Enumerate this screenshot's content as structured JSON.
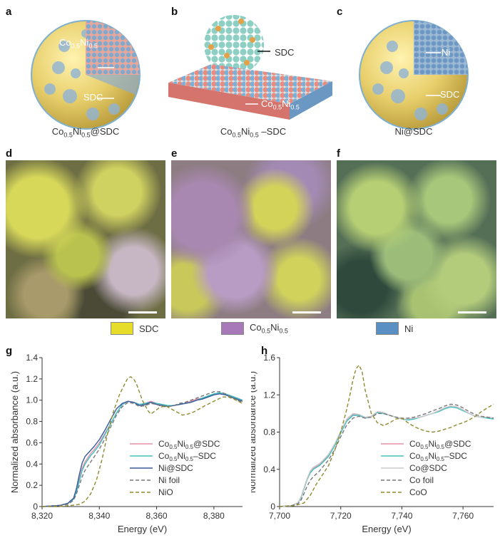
{
  "panels": {
    "a": {
      "label": "a",
      "caption_base": "Co",
      "caption_sub1": "0.5",
      "caption_mid": "Ni",
      "caption_sub2": "0.5",
      "caption_tail": "@SDC",
      "ann1_base": "Co",
      "ann1_sub1": "0.5",
      "ann1_mid": "Ni",
      "ann1_sub2": "0.5",
      "ann2": "SDC"
    },
    "b": {
      "label": "b",
      "caption_base": "Co",
      "caption_sub1": "0.5",
      "caption_mid": "Ni",
      "caption_sub2": "0.5",
      "caption_tail": " –SDC",
      "ann1": "SDC",
      "ann2_base": "Co",
      "ann2_sub1": "0.5",
      "ann2_mid": "Ni",
      "ann2_sub2": "0.5"
    },
    "c": {
      "label": "c",
      "caption": "Ni@SDC",
      "ann1": "Ni",
      "ann2": "SDC"
    },
    "d": {
      "label": "d"
    },
    "e": {
      "label": "e"
    },
    "f": {
      "label": "f"
    },
    "g": {
      "label": "g"
    },
    "h": {
      "label": "h"
    }
  },
  "legend": {
    "sdc": {
      "label": "SDC",
      "color": "#e6dc2a"
    },
    "coni": {
      "label_base": "Co",
      "label_sub1": "0.5",
      "label_mid": "Ni",
      "label_sub2": "0.5",
      "color": "#a879b8"
    },
    "ni": {
      "label": "Ni",
      "color": "#5a8fc4"
    }
  },
  "chart_data": [
    {
      "type": "line",
      "panel": "g",
      "xlabel": "Energy (eV)",
      "ylabel": "Normalized absorbance (a.u.)",
      "xlim": [
        8320,
        8390
      ],
      "ylim": [
        0,
        1.4
      ],
      "xticks": [
        8320,
        8340,
        8360,
        8380
      ],
      "xtick_labels": [
        "8,320",
        "8,340",
        "8,360",
        "8,380"
      ],
      "yticks": [
        0,
        0.2,
        0.4,
        0.6,
        0.8,
        1.0,
        1.2,
        1.4
      ],
      "ytick_labels": [
        "0",
        "0.2",
        "0.4",
        "0.6",
        "0.8",
        "1.0",
        "1.2",
        "1.4"
      ],
      "legend_position": "lower-right",
      "series": [
        {
          "name": "Co0.5Ni0.5@SDC",
          "legend_base": "Co",
          "legend_sub1": "0.5",
          "legend_mid": "Ni",
          "legend_sub2": "0.5",
          "legend_tail": "@SDC",
          "color": "#e58fa6",
          "dash": "solid",
          "x": [
            8320,
            8326,
            8329,
            8331,
            8332,
            8333,
            8334,
            8335,
            8336,
            8337,
            8338,
            8340,
            8342,
            8344,
            8346,
            8348,
            8350,
            8352,
            8354,
            8356,
            8358,
            8360,
            8362,
            8364,
            8366,
            8368,
            8370,
            8372,
            8374,
            8376,
            8378,
            8380,
            8382,
            8384,
            8386,
            8388,
            8390
          ],
          "y": [
            0,
            0.01,
            0.03,
            0.07,
            0.15,
            0.26,
            0.36,
            0.42,
            0.46,
            0.5,
            0.53,
            0.6,
            0.69,
            0.78,
            0.88,
            0.96,
            0.99,
            0.98,
            0.96,
            0.97,
            0.99,
            0.97,
            0.95,
            0.95,
            0.95,
            0.96,
            0.97,
            0.99,
            1.01,
            1.02,
            1.04,
            1.06,
            1.07,
            1.06,
            1.04,
            1.02,
            1.0
          ]
        },
        {
          "name": "Co0.5Ni0.5-SDC",
          "legend_base": "Co",
          "legend_sub1": "0.5",
          "legend_mid": "Ni",
          "legend_sub2": "0.5",
          "legend_tail": "–SDC",
          "color": "#3fc0c0",
          "dash": "solid",
          "x": [
            8320,
            8326,
            8329,
            8331,
            8332,
            8333,
            8334,
            8335,
            8336,
            8337,
            8338,
            8340,
            8342,
            8344,
            8346,
            8348,
            8350,
            8352,
            8354,
            8356,
            8358,
            8360,
            8362,
            8364,
            8366,
            8368,
            8370,
            8372,
            8374,
            8376,
            8378,
            8380,
            8382,
            8384,
            8386,
            8388,
            8390
          ],
          "y": [
            0,
            0.01,
            0.03,
            0.07,
            0.14,
            0.24,
            0.34,
            0.4,
            0.44,
            0.48,
            0.51,
            0.58,
            0.68,
            0.78,
            0.88,
            0.96,
            0.99,
            0.98,
            0.96,
            0.97,
            0.98,
            0.97,
            0.96,
            0.95,
            0.95,
            0.96,
            0.97,
            0.98,
            1.0,
            1.02,
            1.04,
            1.06,
            1.07,
            1.06,
            1.04,
            1.02,
            1.0
          ]
        },
        {
          "name": "Ni@SDC",
          "legend_base": "Ni@SDC",
          "color": "#3a5a9a",
          "dash": "solid",
          "x": [
            8320,
            8326,
            8329,
            8331,
            8332,
            8333,
            8334,
            8335,
            8336,
            8337,
            8338,
            8340,
            8342,
            8344,
            8346,
            8348,
            8350,
            8352,
            8354,
            8356,
            8358,
            8360,
            8362,
            8364,
            8366,
            8368,
            8370,
            8372,
            8374,
            8376,
            8378,
            8380,
            8382,
            8384,
            8386,
            8388,
            8390
          ],
          "y": [
            0,
            0.01,
            0.03,
            0.08,
            0.17,
            0.3,
            0.41,
            0.47,
            0.5,
            0.53,
            0.56,
            0.63,
            0.72,
            0.82,
            0.92,
            0.97,
            0.99,
            0.98,
            0.95,
            0.96,
            0.98,
            0.96,
            0.95,
            0.94,
            0.95,
            0.96,
            0.97,
            0.98,
            1.0,
            1.01,
            1.03,
            1.05,
            1.06,
            1.05,
            1.03,
            1.01,
            0.99
          ]
        },
        {
          "name": "Ni foil",
          "legend_base": "Ni foil",
          "color": "#777777",
          "dash": "dashed",
          "x": [
            8320,
            8326,
            8329,
            8331,
            8332,
            8333,
            8334,
            8335,
            8336,
            8337,
            8338,
            8340,
            8342,
            8344,
            8346,
            8348,
            8350,
            8352,
            8354,
            8356,
            8358,
            8360,
            8362,
            8364,
            8366,
            8368,
            8370,
            8372,
            8374,
            8376,
            8378,
            8380,
            8382,
            8384,
            8386,
            8388,
            8390
          ],
          "y": [
            0,
            0.01,
            0.02,
            0.06,
            0.12,
            0.2,
            0.28,
            0.34,
            0.38,
            0.42,
            0.46,
            0.54,
            0.64,
            0.75,
            0.86,
            0.94,
            0.98,
            0.97,
            0.94,
            0.95,
            0.97,
            0.96,
            0.94,
            0.94,
            0.95,
            0.97,
            0.98,
            1.0,
            1.02,
            1.04,
            1.06,
            1.08,
            1.08,
            1.06,
            1.03,
            1.0,
            0.98
          ]
        },
        {
          "name": "NiO",
          "legend_base": "NiO",
          "color": "#8f8a2e",
          "dash": "dashed",
          "x": [
            8320,
            8326,
            8330,
            8333,
            8335,
            8337,
            8339,
            8341,
            8343,
            8345,
            8347,
            8349,
            8350,
            8351,
            8352,
            8353,
            8355,
            8357,
            8358,
            8359,
            8361,
            8363,
            8365,
            8367,
            8369,
            8371,
            8373,
            8375,
            8377,
            8380,
            8383,
            8385,
            8387,
            8390
          ],
          "y": [
            0,
            0.0,
            0.01,
            0.02,
            0.05,
            0.12,
            0.25,
            0.45,
            0.7,
            0.9,
            1.05,
            1.16,
            1.21,
            1.22,
            1.2,
            1.15,
            1.0,
            0.9,
            0.87,
            0.89,
            0.93,
            0.95,
            0.92,
            0.89,
            0.86,
            0.87,
            0.89,
            0.92,
            0.95,
            0.99,
            1.03,
            1.03,
            1.01,
            0.97
          ]
        }
      ]
    },
    {
      "type": "line",
      "panel": "h",
      "xlabel": "Energy (eV)",
      "ylabel": "Normalized absorbance (a.u.)",
      "xlim": [
        7700,
        7770
      ],
      "ylim": [
        0,
        1.6
      ],
      "xticks": [
        7700,
        7720,
        7740,
        7760
      ],
      "xtick_labels": [
        "7,700",
        "7,720",
        "7,740",
        "7,760"
      ],
      "yticks": [
        0,
        0.4,
        0.8,
        1.2,
        1.6
      ],
      "ytick_labels": [
        "0",
        "0.4",
        "0.8",
        "1.2",
        "1.6"
      ],
      "legend_position": "lower-right",
      "series": [
        {
          "name": "Co0.5Ni0.5@SDC",
          "legend_base": "Co",
          "legend_sub1": "0.5",
          "legend_mid": "Ni",
          "legend_sub2": "0.5",
          "legend_tail": "@SDC",
          "color": "#e58fa6",
          "dash": "solid",
          "x": [
            7700,
            7704,
            7706,
            7707,
            7708,
            7709,
            7710,
            7711,
            7712,
            7713,
            7714,
            7716,
            7718,
            7720,
            7722,
            7724,
            7726,
            7728,
            7730,
            7732,
            7734,
            7736,
            7738,
            7740,
            7742,
            7744,
            7746,
            7748,
            7750,
            7752,
            7754,
            7756,
            7758,
            7760,
            7762,
            7764,
            7766,
            7768,
            7770
          ],
          "y": [
            0,
            0.01,
            0.04,
            0.1,
            0.2,
            0.3,
            0.37,
            0.41,
            0.43,
            0.45,
            0.48,
            0.55,
            0.66,
            0.8,
            0.93,
            0.99,
            0.98,
            0.95,
            0.97,
            1.02,
            1.01,
            0.98,
            0.96,
            0.94,
            0.94,
            0.95,
            0.96,
            0.98,
            1.0,
            1.03,
            1.06,
            1.08,
            1.07,
            1.04,
            1.0,
            0.97,
            0.96,
            0.96,
            0.95
          ]
        },
        {
          "name": "Co0.5Ni0.5-SDC",
          "legend_base": "Co",
          "legend_sub1": "0.5",
          "legend_mid": "Ni",
          "legend_sub2": "0.5",
          "legend_tail": "–SDC",
          "color": "#3fc0c0",
          "dash": "solid",
          "x": [
            7700,
            7704,
            7706,
            7707,
            7708,
            7709,
            7710,
            7711,
            7712,
            7713,
            7714,
            7716,
            7718,
            7720,
            7722,
            7724,
            7726,
            7728,
            7730,
            7732,
            7734,
            7736,
            7738,
            7740,
            7742,
            7744,
            7746,
            7748,
            7750,
            7752,
            7754,
            7756,
            7758,
            7760,
            7762,
            7764,
            7766,
            7768,
            7770
          ],
          "y": [
            0,
            0.01,
            0.04,
            0.09,
            0.19,
            0.29,
            0.36,
            0.4,
            0.42,
            0.44,
            0.47,
            0.54,
            0.65,
            0.79,
            0.92,
            0.98,
            0.98,
            0.95,
            0.97,
            1.01,
            1.0,
            0.98,
            0.96,
            0.94,
            0.93,
            0.94,
            0.96,
            0.98,
            1.0,
            1.02,
            1.05,
            1.07,
            1.06,
            1.03,
            1.0,
            0.97,
            0.96,
            0.95,
            0.94
          ]
        },
        {
          "name": "Co@SDC",
          "legend_base": "Co@SDC",
          "color": "#c8c8c8",
          "dash": "solid",
          "x": [
            7700,
            7704,
            7706,
            7707,
            7708,
            7709,
            7710,
            7711,
            7712,
            7713,
            7714,
            7716,
            7718,
            7720,
            7722,
            7724,
            7726,
            7728,
            7730,
            7732,
            7734,
            7736,
            7738,
            7740,
            7742,
            7744,
            7746,
            7748,
            7750,
            7752,
            7754,
            7756,
            7758,
            7760,
            7762,
            7764,
            7766,
            7768,
            7770
          ],
          "y": [
            0,
            0.01,
            0.04,
            0.1,
            0.2,
            0.3,
            0.38,
            0.42,
            0.44,
            0.46,
            0.49,
            0.56,
            0.67,
            0.81,
            0.94,
            1.0,
            0.99,
            0.96,
            0.97,
            1.02,
            1.01,
            0.98,
            0.96,
            0.94,
            0.94,
            0.95,
            0.96,
            0.98,
            1.0,
            1.03,
            1.06,
            1.08,
            1.07,
            1.04,
            1.0,
            0.97,
            0.96,
            0.96,
            0.95
          ]
        },
        {
          "name": "Co foil",
          "legend_base": "Co foil",
          "color": "#777777",
          "dash": "dashed",
          "x": [
            7700,
            7704,
            7706,
            7707,
            7708,
            7709,
            7710,
            7711,
            7712,
            7713,
            7714,
            7716,
            7718,
            7720,
            7722,
            7724,
            7726,
            7728,
            7730,
            7732,
            7734,
            7736,
            7738,
            7740,
            7742,
            7744,
            7746,
            7748,
            7750,
            7752,
            7754,
            7756,
            7758,
            7760,
            7762,
            7764,
            7766,
            7768,
            7770
          ],
          "y": [
            0,
            0.01,
            0.03,
            0.07,
            0.14,
            0.22,
            0.28,
            0.32,
            0.35,
            0.38,
            0.42,
            0.5,
            0.61,
            0.75,
            0.88,
            0.95,
            0.97,
            0.95,
            0.96,
            1.0,
            1.0,
            0.98,
            0.96,
            0.95,
            0.95,
            0.96,
            0.98,
            1.0,
            1.03,
            1.05,
            1.08,
            1.1,
            1.09,
            1.06,
            1.02,
            0.99,
            0.97,
            0.96,
            0.95
          ]
        },
        {
          "name": "CoO",
          "legend_base": "CoO",
          "color": "#8f8a2e",
          "dash": "dashed",
          "x": [
            7700,
            7705,
            7708,
            7710,
            7712,
            7714,
            7716,
            7718,
            7720,
            7722,
            7723,
            7724,
            7725,
            7726,
            7727,
            7728,
            7730,
            7732,
            7734,
            7736,
            7738,
            7740,
            7742,
            7744,
            7746,
            7748,
            7750,
            7752,
            7754,
            7756,
            7758,
            7760,
            7762,
            7764,
            7766,
            7768,
            7770
          ],
          "y": [
            0,
            0.01,
            0.04,
            0.12,
            0.24,
            0.34,
            0.44,
            0.6,
            0.8,
            1.05,
            1.2,
            1.36,
            1.48,
            1.52,
            1.45,
            1.25,
            1.0,
            0.9,
            0.87,
            0.9,
            0.94,
            0.95,
            0.9,
            0.86,
            0.83,
            0.81,
            0.8,
            0.81,
            0.83,
            0.85,
            0.88,
            0.9,
            0.93,
            0.97,
            1.02,
            1.06,
            1.1
          ]
        }
      ]
    }
  ]
}
